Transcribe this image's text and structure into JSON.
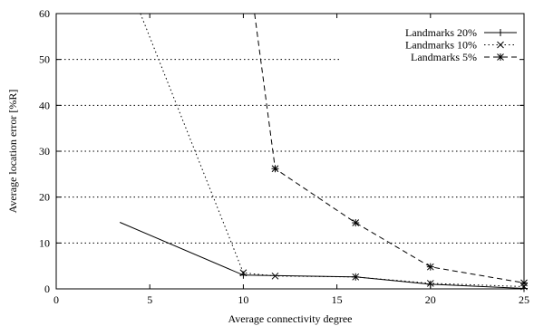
{
  "chart_data": {
    "type": "line",
    "title": "",
    "xlabel": "Average connectivity degree",
    "ylabel": "Average location error [%R]",
    "xlim": [
      0,
      25
    ],
    "ylim": [
      0,
      60
    ],
    "x_ticks": [
      0,
      5,
      10,
      15,
      20,
      25
    ],
    "y_ticks": [
      0,
      10,
      20,
      30,
      40,
      50,
      60
    ],
    "grid": "horizontal dotted",
    "legend_position": "top-right",
    "series": [
      {
        "name": "Landmarks 20%",
        "line_style": "solid",
        "marker": "plus",
        "color": "#000000",
        "x": [
          3.4,
          10,
          16,
          20,
          25
        ],
        "y": [
          14.5,
          3.0,
          2.6,
          1.0,
          0.1
        ],
        "marked": [
          false,
          true,
          true,
          true,
          true
        ]
      },
      {
        "name": "Landmarks 10%",
        "line_style": "dotted",
        "marker": "cross",
        "color": "#000000",
        "x": [
          4.5,
          10,
          11.7,
          16,
          20,
          25
        ],
        "y": [
          60,
          3.5,
          2.8,
          2.6,
          1.2,
          0.5
        ],
        "marked": [
          false,
          true,
          true,
          true,
          true,
          true
        ]
      },
      {
        "name": "Landmarks 5%",
        "line_style": "dashed",
        "marker": "asterisk",
        "color": "#000000",
        "x": [
          10.6,
          11.7,
          16,
          20,
          25
        ],
        "y": [
          60,
          26.2,
          14.4,
          4.8,
          1.3
        ],
        "marked": [
          false,
          true,
          true,
          true,
          true
        ]
      }
    ]
  }
}
